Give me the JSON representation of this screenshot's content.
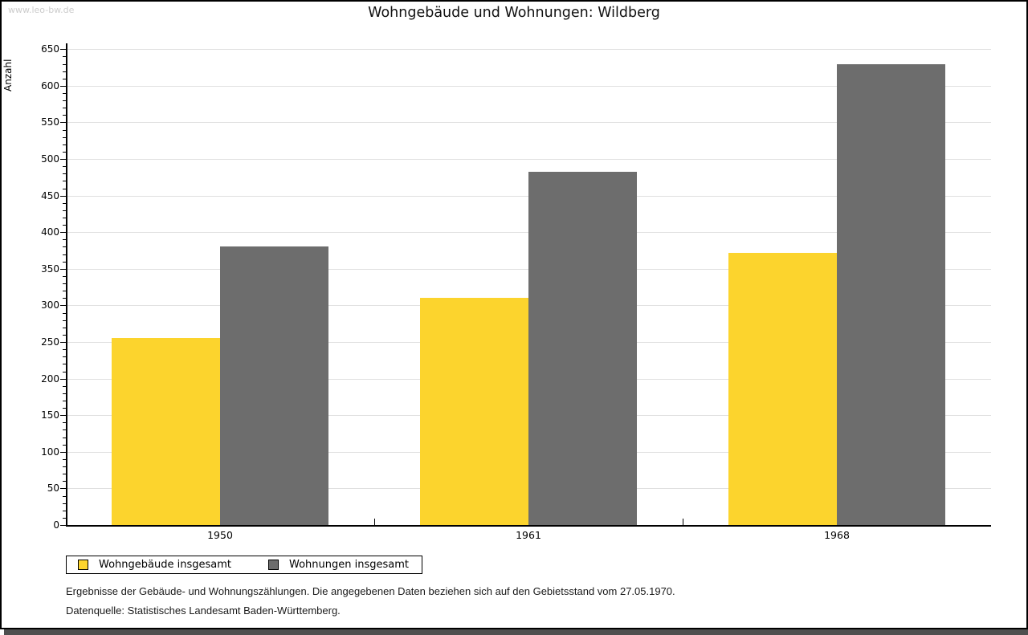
{
  "page": {
    "watermark": "www.leo-bw.de"
  },
  "chart_data": {
    "type": "bar",
    "title": "Wohngebäude und Wohnungen: Wildberg",
    "ylabel": "Anzahl",
    "xlabel": "",
    "categories": [
      "1950",
      "1961",
      "1968"
    ],
    "series": [
      {
        "name": "Wohngebäude insgesamt",
        "color": "#fcd42d",
        "values": [
          255,
          310,
          372
        ]
      },
      {
        "name": "Wohnungen insgesamt",
        "color": "#6d6d6d",
        "values": [
          381,
          482,
          630
        ]
      }
    ],
    "ylim": [
      0,
      650
    ],
    "ytick_step": 50,
    "ytick_minor_step": 10,
    "grid": true,
    "legend_position": "bottom-left"
  },
  "footer": {
    "line1": "Ergebnisse der Gebäude- und Wohnungszählungen. Die angegebenen Daten beziehen sich auf den Gebietsstand vom 27.05.1970.",
    "line2": "Datenquelle: Statistisches Landesamt Baden-Württemberg."
  },
  "colors": {
    "grid": "#e0e0e0",
    "axis": "#000000",
    "watermark": "#cccccc",
    "frame_shadow": "#4f4f4f",
    "background": "#ffffff"
  }
}
